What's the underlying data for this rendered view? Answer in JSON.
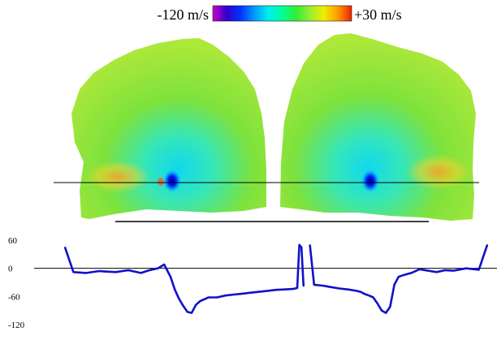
{
  "colorbar": {
    "min_label": "-120 m/s",
    "max_label": "+30 m/s",
    "min_value": -120,
    "max_value": 30,
    "colors": [
      "#cc00cc",
      "#3300cc",
      "#0033ff",
      "#0099ff",
      "#00eeee",
      "#00ff99",
      "#33ee33",
      "#99ee33",
      "#eeee00",
      "#ff9900",
      "#ee2200"
    ]
  },
  "chart_data": {
    "type": "line",
    "title": "",
    "xlabel": "",
    "ylabel": "",
    "ylim": [
      -120,
      60
    ],
    "yticks": [
      60,
      0,
      -60,
      -120
    ],
    "ytick_labels": [
      "60",
      "0",
      "-60",
      "-120"
    ],
    "grid": false,
    "series": [
      {
        "x": [
          0,
          2,
          5,
          8,
          12,
          15,
          18,
          20,
          22,
          23.5,
          25,
          26,
          27,
          28,
          29,
          30,
          31,
          32,
          34,
          36,
          38,
          40,
          42,
          44,
          46,
          48,
          50,
          52,
          54,
          55,
          55.5,
          56,
          56.5
        ],
        "values": [
          45,
          -8,
          -10,
          -6,
          -8,
          -4,
          -10,
          -4,
          0,
          8,
          -18,
          -45,
          -65,
          -80,
          -93,
          -95,
          -78,
          -70,
          -62,
          -62,
          -58,
          -56,
          -54,
          -52,
          -50,
          -48,
          -46,
          -45,
          -44,
          -42,
          50,
          45,
          -38
        ]
      },
      {
        "x": [
          58,
          59,
          61,
          63,
          65,
          67,
          69,
          70,
          71,
          72,
          73,
          74,
          75,
          76,
          77,
          78,
          79,
          80,
          82,
          84,
          86,
          88,
          90,
          92,
          95,
          98,
          100
        ],
        "values": [
          50,
          -35,
          -37,
          -40,
          -43,
          -45,
          -48,
          -50,
          -55,
          -58,
          -62,
          -75,
          -90,
          -95,
          -82,
          -35,
          -18,
          -15,
          -10,
          -2,
          -5,
          -8,
          -4,
          -5,
          0,
          -3,
          50
        ]
      }
    ],
    "series_color": "#1010cc"
  },
  "velocity_map": {
    "description_colors": {
      "background_field": "#7fe23a",
      "outer_field": "#a8e83a",
      "near_core": "#33e6b0",
      "core": "#00c0f0",
      "vortex": "#0000cc",
      "warm_edge": "#ff9a30"
    }
  }
}
